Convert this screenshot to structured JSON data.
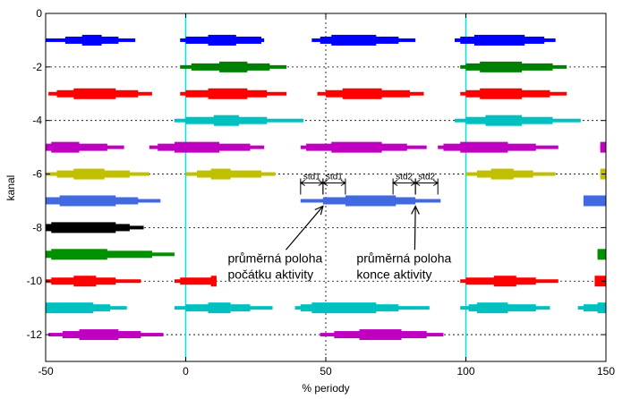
{
  "chart_data": {
    "type": "bar",
    "title": "",
    "xlabel": "% periody",
    "ylabel": "kanal",
    "xlim": [
      -50,
      150
    ],
    "ylim": [
      -13,
      0
    ],
    "xticks": [
      -50,
      0,
      50,
      100,
      150
    ],
    "yticks": [
      0,
      -2,
      -4,
      -6,
      -8,
      -10,
      -12
    ],
    "grid": "dotted",
    "period_lines": [
      0,
      100
    ],
    "period_line_color": "#00e5e5",
    "channels": [
      {
        "channel": -1,
        "color": "#0000ff",
        "bars": [
          [
            -50,
            -18,
            -43,
            -24,
            -37,
            -30
          ],
          [
            -2,
            28,
            0,
            27,
            8,
            18
          ],
          [
            45,
            82,
            48,
            76,
            52,
            68
          ],
          [
            96,
            132,
            98,
            128,
            103,
            121
          ]
        ]
      },
      {
        "channel": -2,
        "color": "#008000",
        "bars": [
          [
            -2,
            36,
            2,
            30,
            12,
            22
          ],
          [
            98,
            136,
            100,
            131,
            105,
            120
          ]
        ]
      },
      {
        "channel": -3,
        "color": "#ff0000",
        "bars": [
          [
            -49,
            -12,
            -46,
            -17,
            -40,
            -25
          ],
          [
            -2,
            36,
            0,
            29,
            8,
            22
          ],
          [
            47,
            85,
            50,
            80,
            56,
            70
          ],
          [
            98,
            136,
            100,
            130,
            105,
            120
          ]
        ]
      },
      {
        "channel": -4,
        "color": "#00c0c0",
        "bars": [
          [
            -4,
            42,
            0,
            29,
            10,
            19
          ],
          [
            96,
            141,
            100,
            131,
            107,
            120
          ]
        ]
      },
      {
        "channel": -5,
        "color": "#c000c0",
        "bars": [
          [
            -50,
            -22,
            -50,
            -28,
            -48,
            -38
          ],
          [
            -13,
            28,
            -10,
            23,
            -4,
            12
          ],
          [
            41,
            86,
            43,
            79,
            52,
            70
          ],
          [
            90,
            133,
            92,
            125,
            98,
            115
          ],
          [
            148,
            150,
            148,
            150,
            148,
            150
          ]
        ]
      },
      {
        "channel": -6,
        "color": "#c0c000",
        "bars": [
          [
            -50,
            -13,
            -46,
            -20,
            -40,
            -29
          ],
          [
            0,
            32,
            4,
            27,
            9,
            16
          ],
          [
            100,
            132,
            104,
            124,
            109,
            117
          ],
          [
            148,
            150,
            148,
            150,
            148,
            150
          ]
        ]
      },
      {
        "channel": -7,
        "color": "#4169e1",
        "bars": [
          [
            -50,
            -9,
            -50,
            -17,
            -45,
            -25
          ],
          [
            41,
            91,
            49,
            82,
            57,
            75
          ],
          [
            142,
            150,
            142,
            150,
            142,
            150
          ]
        ]
      },
      {
        "channel": -8,
        "color": "#000000",
        "bars": [
          [
            -50,
            -15,
            -50,
            -20,
            -48,
            -25
          ]
        ]
      },
      {
        "channel": -9,
        "color": "#009000",
        "bars": [
          [
            -50,
            -4,
            -50,
            -12,
            -48,
            -28
          ],
          [
            147,
            150,
            147,
            150,
            147,
            150
          ]
        ]
      },
      {
        "channel": -10,
        "color": "#ff0000",
        "bars": [
          [
            -50,
            -16,
            -48,
            -25,
            -40,
            -32
          ],
          [
            -4,
            11,
            -2,
            11,
            9,
            11
          ],
          [
            98,
            133,
            100,
            125,
            110,
            118
          ],
          [
            146,
            150,
            146,
            150,
            146,
            150
          ]
        ]
      },
      {
        "channel": -11,
        "color": "#00c0c0",
        "bars": [
          [
            -50,
            -21,
            -50,
            -27,
            -50,
            -33
          ],
          [
            -4,
            31,
            0,
            23,
            8,
            16
          ],
          [
            39,
            87,
            41,
            76,
            45,
            68
          ],
          [
            98,
            130,
            101,
            125,
            104,
            115
          ],
          [
            140,
            150,
            142,
            150,
            147,
            150
          ]
        ]
      },
      {
        "channel": -12,
        "color": "#c000c0",
        "bars": [
          [
            -49,
            -8,
            -44,
            -16,
            -38,
            -24
          ],
          [
            48,
            92,
            53,
            86,
            62,
            77
          ]
        ]
      }
    ],
    "bar_format": "[outer_start, outer_end, mid_start, mid_end, inner_start, inner_end] in % periody",
    "std_bracket": {
      "channel": -7,
      "start_mean": 49,
      "end_mean": 82,
      "std": 8,
      "labels": [
        "std1",
        "std1",
        "std2",
        "std2"
      ]
    },
    "annotations": [
      {
        "text_lines": [
          "průměrná poloha",
          "počátku aktivity"
        ],
        "x": 15,
        "y": -9.3,
        "arrow_to": [
          49,
          -7.2
        ]
      },
      {
        "text_lines": [
          "průměrná poloha",
          "konce aktivity"
        ],
        "x": 61,
        "y": -9.3,
        "arrow_to": [
          82,
          -7.2
        ]
      }
    ]
  }
}
